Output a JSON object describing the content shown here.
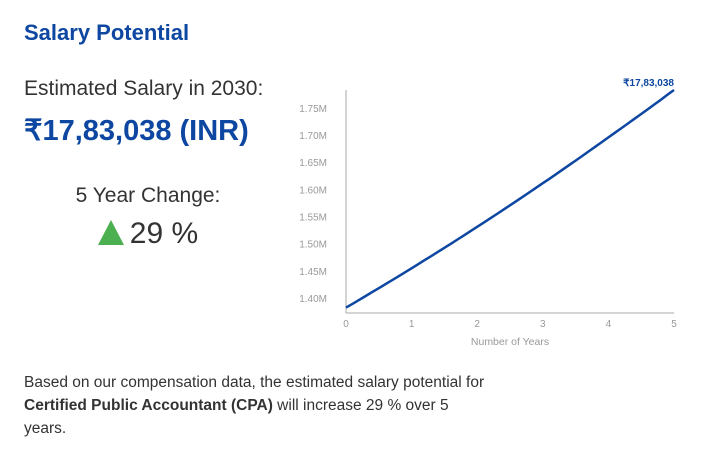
{
  "title": "Salary Potential",
  "estimate": {
    "label": "Estimated Salary in 2030:",
    "value": "₹17,83,038 (INR)"
  },
  "change": {
    "label": "5 Year Change:",
    "value": "29 %",
    "direction": "up",
    "icon": "triangle-up-icon",
    "color": "#4caf50"
  },
  "description": {
    "pre": "Based on our compensation data, the estimated salary potential for ",
    "job": "Certified Public Accountant (CPA)",
    "post": " will increase 29 % over 5 years."
  },
  "colors": {
    "accent": "#0d47a1",
    "axis": "#999999"
  },
  "chart_data": {
    "type": "line",
    "x": [
      0,
      1,
      2,
      3,
      4,
      5
    ],
    "series": [
      {
        "values": [
          1382200,
          1454700,
          1531000,
          1611300,
          1695800,
          1783038
        ]
      }
    ],
    "xlabel": "Number of Years",
    "ylabel": "",
    "xlim": [
      0,
      5
    ],
    "ylim": [
      1372300,
      1783038
    ],
    "xticks": [
      "0",
      "1",
      "2",
      "3",
      "4",
      "5"
    ],
    "yticks": [
      {
        "value": 1400000,
        "label": "1.40M"
      },
      {
        "value": 1450000,
        "label": "1.45M"
      },
      {
        "value": 1500000,
        "label": "1.50M"
      },
      {
        "value": 1550000,
        "label": "1.55M"
      },
      {
        "value": 1600000,
        "label": "1.60M"
      },
      {
        "value": 1650000,
        "label": "1.65M"
      },
      {
        "value": 1700000,
        "label": "1.70M"
      },
      {
        "value": 1750000,
        "label": "1.75M"
      }
    ],
    "end_label": "₹17,83,038",
    "grid": false
  }
}
